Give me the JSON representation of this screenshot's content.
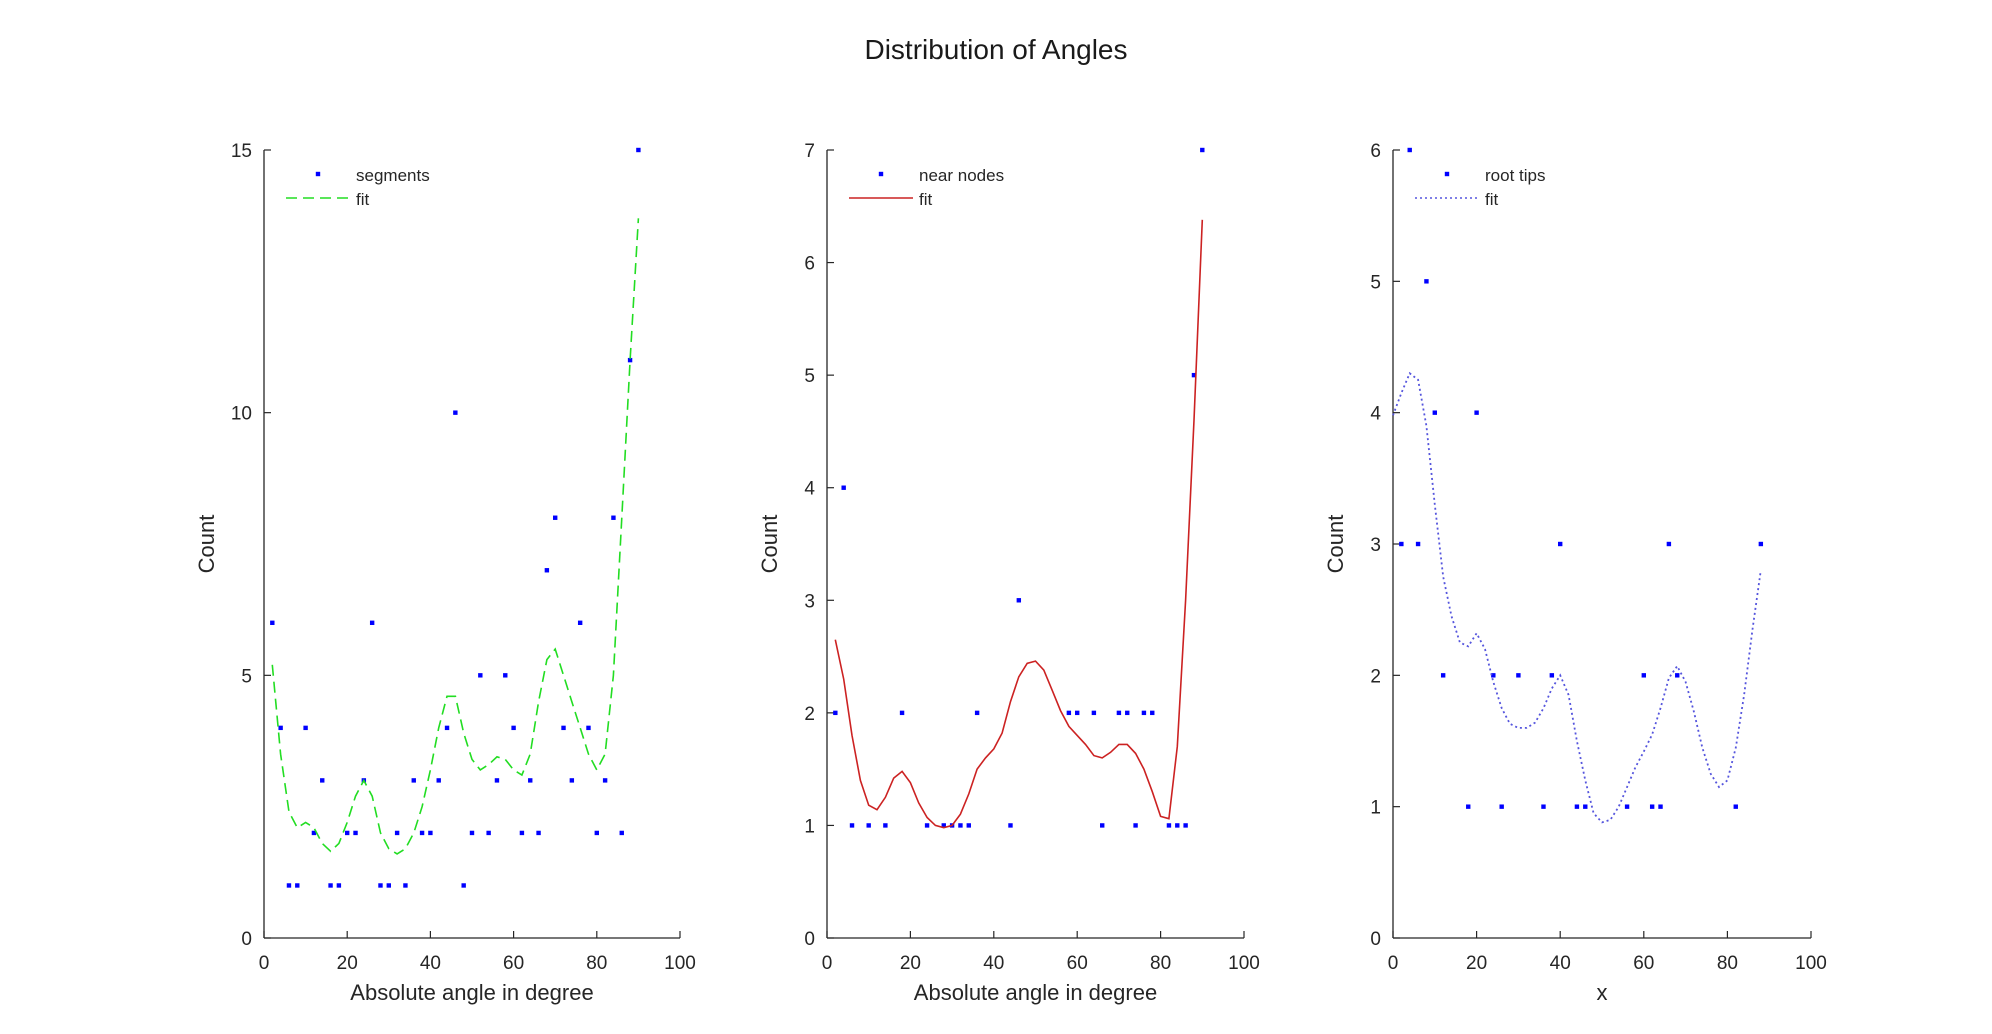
{
  "figure": {
    "title": "Distribution of Angles"
  },
  "chart_data": [
    {
      "type": "scatter",
      "xlabel": "Absolute angle in degree",
      "ylabel": "Count",
      "xlim": [
        0,
        100
      ],
      "ylim": [
        0,
        15
      ],
      "xticks": [
        "0",
        "20",
        "40",
        "60",
        "80",
        "100"
      ],
      "yticks": [
        "0",
        "5",
        "10",
        "15"
      ],
      "legend_position": "top-left",
      "series": [
        {
          "name": "segments",
          "kind": "points",
          "color": "#0000ff",
          "x": [
            2,
            4,
            6,
            8,
            10,
            12,
            14,
            16,
            18,
            20,
            22,
            24,
            26,
            28,
            30,
            32,
            34,
            36,
            38,
            40,
            42,
            44,
            46,
            48,
            50,
            52,
            54,
            56,
            58,
            60,
            62,
            64,
            66,
            68,
            70,
            72,
            74,
            76,
            78,
            80,
            82,
            84,
            86,
            88,
            90
          ],
          "y": [
            6,
            4,
            1,
            1,
            4,
            2,
            3,
            1,
            1,
            2,
            2,
            3,
            6,
            1,
            1,
            2,
            1,
            3,
            2,
            2,
            3,
            4,
            10,
            1,
            2,
            5,
            2,
            3,
            5,
            4,
            2,
            3,
            2,
            7,
            8,
            4,
            3,
            6,
            4,
            2,
            3,
            8,
            2,
            11,
            15
          ]
        },
        {
          "name": "fit",
          "kind": "dashed",
          "color": "#22dd22",
          "x": [
            2,
            4,
            6,
            8,
            10,
            12,
            14,
            16,
            18,
            20,
            22,
            24,
            26,
            28,
            30,
            32,
            34,
            36,
            38,
            40,
            42,
            44,
            46,
            48,
            50,
            52,
            54,
            56,
            58,
            60,
            62,
            64,
            66,
            68,
            70,
            72,
            74,
            76,
            78,
            80,
            82,
            84,
            86,
            88,
            90
          ],
          "y": [
            5.2,
            3.5,
            2.4,
            2.1,
            2.2,
            2.1,
            1.8,
            1.65,
            1.8,
            2.2,
            2.7,
            3.0,
            2.7,
            2.0,
            1.7,
            1.6,
            1.7,
            2.0,
            2.5,
            3.2,
            4.0,
            4.6,
            4.6,
            3.9,
            3.4,
            3.2,
            3.3,
            3.45,
            3.4,
            3.2,
            3.1,
            3.5,
            4.5,
            5.3,
            5.5,
            5.0,
            4.5,
            4.0,
            3.5,
            3.2,
            3.5,
            5.0,
            8.0,
            11.0,
            13.7
          ]
        }
      ]
    },
    {
      "type": "scatter",
      "xlabel": "Absolute angle in degree",
      "ylabel": "Count",
      "xlim": [
        0,
        100
      ],
      "ylim": [
        0,
        7
      ],
      "xticks": [
        "0",
        "20",
        "40",
        "60",
        "80",
        "100"
      ],
      "yticks": [
        "0",
        "1",
        "2",
        "3",
        "4",
        "5",
        "6",
        "7"
      ],
      "legend_position": "top-left",
      "series": [
        {
          "name": "near nodes",
          "kind": "points",
          "color": "#0000ff",
          "x": [
            2,
            4,
            6,
            10,
            14,
            18,
            24,
            28,
            30,
            32,
            34,
            36,
            44,
            46,
            58,
            60,
            64,
            66,
            70,
            72,
            74,
            76,
            78,
            82,
            84,
            86,
            88,
            90
          ],
          "y": [
            2,
            4,
            1,
            1,
            1,
            2,
            1,
            1,
            1,
            1,
            1,
            2,
            1,
            3,
            2,
            2,
            2,
            1,
            2,
            2,
            1,
            2,
            2,
            1,
            1,
            1,
            5,
            7
          ]
        },
        {
          "name": "fit",
          "kind": "solid",
          "color": "#cc2222",
          "x": [
            2,
            4,
            6,
            8,
            10,
            12,
            14,
            16,
            18,
            20,
            22,
            24,
            26,
            28,
            30,
            32,
            34,
            36,
            38,
            40,
            42,
            44,
            46,
            48,
            50,
            52,
            54,
            56,
            58,
            60,
            62,
            64,
            66,
            68,
            70,
            72,
            74,
            76,
            78,
            80,
            82,
            84,
            86,
            88,
            90
          ],
          "y": [
            2.65,
            2.3,
            1.8,
            1.4,
            1.18,
            1.14,
            1.25,
            1.42,
            1.48,
            1.38,
            1.2,
            1.07,
            1.0,
            0.98,
            1.0,
            1.1,
            1.28,
            1.5,
            1.6,
            1.68,
            1.82,
            2.1,
            2.32,
            2.44,
            2.46,
            2.38,
            2.2,
            2.02,
            1.88,
            1.8,
            1.72,
            1.62,
            1.6,
            1.65,
            1.72,
            1.72,
            1.64,
            1.5,
            1.3,
            1.08,
            1.06,
            1.7,
            3.0,
            4.6,
            6.38
          ]
        }
      ]
    },
    {
      "type": "scatter",
      "xlabel": "x",
      "ylabel": "Count",
      "xlim": [
        0,
        100
      ],
      "ylim": [
        0,
        6
      ],
      "xticks": [
        "0",
        "20",
        "40",
        "60",
        "80",
        "100"
      ],
      "yticks": [
        "0",
        "1",
        "2",
        "3",
        "4",
        "5",
        "6"
      ],
      "legend_position": "top-left",
      "series": [
        {
          "name": "root tips",
          "kind": "points",
          "color": "#0000ff",
          "x": [
            2,
            4,
            6,
            8,
            10,
            12,
            18,
            20,
            24,
            26,
            30,
            36,
            38,
            40,
            44,
            46,
            56,
            60,
            62,
            64,
            66,
            68,
            82,
            88
          ],
          "y": [
            3,
            6,
            3,
            5,
            4,
            2,
            1,
            4,
            2,
            1,
            2,
            1,
            2,
            3,
            1,
            1,
            1,
            2,
            1,
            1,
            3,
            2,
            1,
            3
          ]
        },
        {
          "name": "fit",
          "kind": "dotted",
          "color": "#5555dd",
          "x": [
            0,
            2,
            4,
            6,
            8,
            10,
            12,
            14,
            16,
            18,
            20,
            22,
            24,
            26,
            28,
            30,
            32,
            34,
            36,
            38,
            40,
            42,
            44,
            46,
            48,
            50,
            52,
            54,
            56,
            58,
            60,
            62,
            64,
            66,
            68,
            70,
            72,
            74,
            76,
            78,
            80,
            82,
            84,
            86,
            88
          ],
          "y": [
            3.98,
            4.15,
            4.3,
            4.25,
            3.9,
            3.3,
            2.75,
            2.45,
            2.25,
            2.22,
            2.32,
            2.2,
            1.95,
            1.75,
            1.63,
            1.6,
            1.6,
            1.64,
            1.75,
            1.9,
            2.0,
            1.85,
            1.5,
            1.2,
            0.95,
            0.88,
            0.9,
            1.0,
            1.15,
            1.3,
            1.42,
            1.55,
            1.75,
            1.98,
            2.07,
            1.95,
            1.72,
            1.45,
            1.25,
            1.15,
            1.2,
            1.45,
            1.85,
            2.35,
            2.8
          ]
        }
      ]
    }
  ]
}
